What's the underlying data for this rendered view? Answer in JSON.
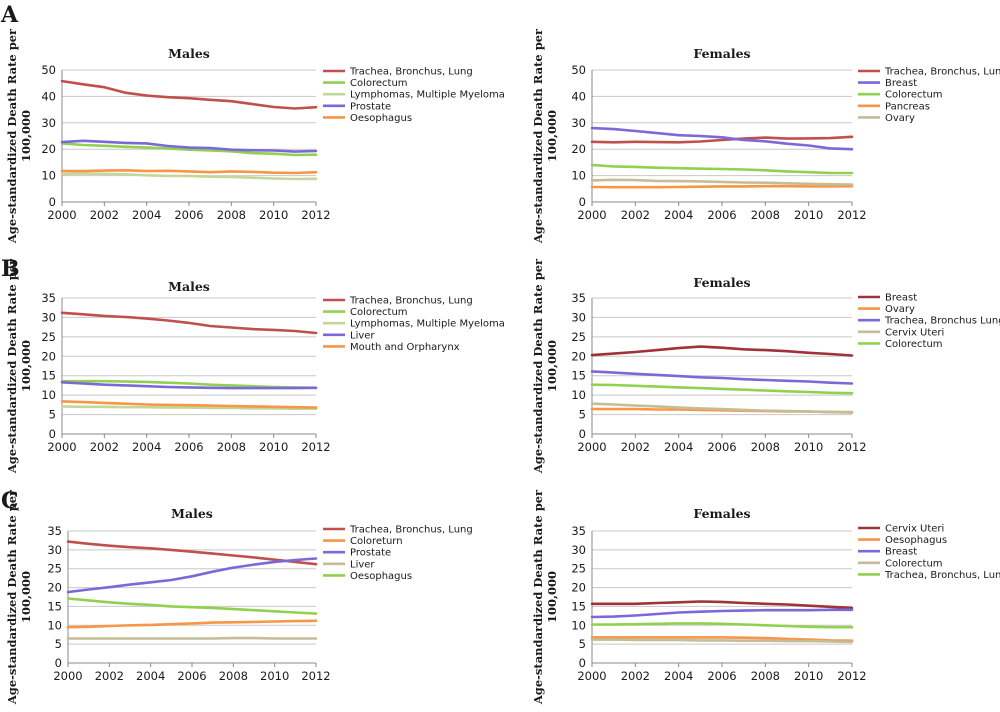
{
  "panel_labels": [
    "A",
    "B",
    "C"
  ],
  "ylabel_lines": [
    "Age-standardized Death Rate per",
    "100,000"
  ],
  "colors": {
    "red": "#c0504d",
    "green": "#92d050",
    "olive": "#c4d79b",
    "purple": "#7b68d9",
    "orange": "#f79646",
    "tan": "#c4bd97",
    "darkred": "#a0323a"
  },
  "chart_data": [
    {
      "type": "line",
      "panel": "A",
      "title": "Males",
      "xlabel": "",
      "ylabel": "Age-standardized Death Rate per 100,000",
      "xlim": [
        2000,
        2012
      ],
      "ylim": [
        0,
        50
      ],
      "yticks": [
        0,
        10,
        20,
        30,
        40,
        50
      ],
      "xticks": [
        2000,
        2002,
        2004,
        2006,
        2008,
        2010,
        2012
      ],
      "x": [
        2000,
        2001,
        2002,
        2003,
        2004,
        2005,
        2006,
        2007,
        2008,
        2009,
        2010,
        2011,
        2012
      ],
      "legend": "right",
      "series": [
        {
          "name": "Trachea, Bronchus, Lung",
          "color": "red",
          "values": [
            45.8,
            44.6,
            43.5,
            41.4,
            40.3,
            39.7,
            39.3,
            38.7,
            38.2,
            37.1,
            36.0,
            35.4,
            35.9
          ]
        },
        {
          "name": "Colorectum",
          "color": "green",
          "values": [
            22.2,
            21.6,
            21.3,
            20.9,
            20.6,
            20.3,
            19.8,
            19.5,
            19.2,
            18.5,
            18.3,
            17.8,
            17.9
          ]
        },
        {
          "name": "Lymphomas, Multiple Myeloma",
          "color": "olive",
          "values": [
            10.6,
            10.8,
            10.7,
            10.5,
            10.1,
            9.9,
            9.9,
            9.6,
            9.5,
            9.2,
            8.9,
            8.7,
            8.8
          ]
        },
        {
          "name": "Prostate",
          "color": "purple",
          "values": [
            22.7,
            23.2,
            22.8,
            22.4,
            22.2,
            21.2,
            20.6,
            20.4,
            19.8,
            19.6,
            19.5,
            19.1,
            19.3
          ]
        },
        {
          "name": "Oesophagus",
          "color": "orange",
          "values": [
            11.7,
            11.7,
            11.9,
            12.0,
            11.7,
            11.8,
            11.6,
            11.3,
            11.6,
            11.4,
            11.1,
            11.0,
            11.3
          ]
        }
      ]
    },
    {
      "type": "line",
      "panel": "A",
      "title": "Females",
      "xlabel": "",
      "ylabel": "Age-standardized Death Rate per 100,000",
      "xlim": [
        2000,
        2012
      ],
      "ylim": [
        0,
        50
      ],
      "yticks": [
        0,
        10,
        20,
        30,
        40,
        50
      ],
      "xticks": [
        2000,
        2002,
        2004,
        2006,
        2008,
        2010,
        2012
      ],
      "x": [
        2000,
        2001,
        2002,
        2003,
        2004,
        2005,
        2006,
        2007,
        2008,
        2009,
        2010,
        2011,
        2012
      ],
      "legend": "right",
      "series": [
        {
          "name": "Trachea, Bronchus, Lung",
          "color": "red",
          "values": [
            22.8,
            22.6,
            22.8,
            22.7,
            22.6,
            22.9,
            23.5,
            24.0,
            24.4,
            24.0,
            24.1,
            24.2,
            24.7
          ]
        },
        {
          "name": "Breast",
          "color": "purple",
          "values": [
            28.0,
            27.6,
            26.9,
            26.1,
            25.3,
            25.0,
            24.5,
            23.5,
            23.0,
            22.1,
            21.4,
            20.3,
            20.0
          ]
        },
        {
          "name": "Colorectum",
          "color": "green",
          "values": [
            14.0,
            13.5,
            13.3,
            13.0,
            12.8,
            12.6,
            12.5,
            12.3,
            12.0,
            11.6,
            11.3,
            11.0,
            11.0
          ]
        },
        {
          "name": "Pancreas",
          "color": "orange",
          "values": [
            5.7,
            5.6,
            5.6,
            5.6,
            5.7,
            5.8,
            5.9,
            5.9,
            6.0,
            6.0,
            5.9,
            5.9,
            6.0
          ]
        },
        {
          "name": "Ovary",
          "color": "tan",
          "values": [
            8.2,
            8.4,
            8.3,
            8.0,
            7.9,
            7.8,
            7.6,
            7.4,
            7.3,
            7.1,
            6.9,
            6.7,
            6.6
          ]
        }
      ]
    },
    {
      "type": "line",
      "panel": "B",
      "title": "Males",
      "xlabel": "",
      "ylabel": "Age-standardized Death Rate per 100,000",
      "xlim": [
        2000,
        2012
      ],
      "ylim": [
        0,
        35
      ],
      "yticks": [
        0,
        5,
        10,
        15,
        20,
        25,
        30,
        35
      ],
      "xticks": [
        2000,
        2002,
        2004,
        2006,
        2008,
        2010,
        2012
      ],
      "x": [
        2000,
        2001,
        2002,
        2003,
        2004,
        2005,
        2006,
        2007,
        2008,
        2009,
        2010,
        2011,
        2012
      ],
      "legend": "right",
      "series": [
        {
          "name": "Trachea, Bronchus, Lung",
          "color": "red",
          "values": [
            31.2,
            30.8,
            30.4,
            30.1,
            29.7,
            29.2,
            28.6,
            27.8,
            27.4,
            27.0,
            26.8,
            26.5,
            26.0
          ]
        },
        {
          "name": "Colorectum",
          "color": "green",
          "values": [
            13.6,
            13.6,
            13.6,
            13.5,
            13.4,
            13.2,
            13.0,
            12.7,
            12.5,
            12.3,
            12.1,
            12.0,
            11.9
          ]
        },
        {
          "name": "Lymphomas, Multiple Myeloma",
          "color": "olive",
          "values": [
            7.1,
            7.0,
            7.0,
            6.9,
            6.9,
            6.8,
            6.8,
            6.7,
            6.7,
            6.6,
            6.6,
            6.5,
            6.5
          ]
        },
        {
          "name": "Liver",
          "color": "purple",
          "values": [
            13.3,
            13.0,
            12.7,
            12.5,
            12.3,
            12.1,
            12.0,
            11.9,
            11.8,
            11.8,
            11.8,
            11.8,
            11.9
          ]
        },
        {
          "name": "Mouth and Orpharynx",
          "color": "orange",
          "values": [
            8.4,
            8.2,
            8.0,
            7.8,
            7.6,
            7.5,
            7.4,
            7.3,
            7.2,
            7.1,
            7.0,
            6.9,
            6.8
          ]
        }
      ]
    },
    {
      "type": "line",
      "panel": "B",
      "title": "Females",
      "xlabel": "",
      "ylabel": "Age-standardized Death Rate per 100,000",
      "xlim": [
        2000,
        2012
      ],
      "ylim": [
        0,
        35
      ],
      "yticks": [
        0,
        5,
        10,
        15,
        20,
        25,
        30,
        35
      ],
      "xticks": [
        2000,
        2002,
        2004,
        2006,
        2008,
        2010,
        2012
      ],
      "x": [
        2000,
        2001,
        2002,
        2003,
        2004,
        2005,
        2006,
        2007,
        2008,
        2009,
        2010,
        2011,
        2012
      ],
      "legend": "right",
      "series": [
        {
          "name": "Breast",
          "color": "darkred",
          "values": [
            20.3,
            20.7,
            21.1,
            21.6,
            22.1,
            22.5,
            22.2,
            21.8,
            21.6,
            21.3,
            20.9,
            20.6,
            20.2
          ]
        },
        {
          "name": "Ovary",
          "color": "orange",
          "values": [
            6.4,
            6.4,
            6.4,
            6.3,
            6.3,
            6.2,
            6.1,
            6.0,
            5.9,
            5.8,
            5.8,
            5.7,
            5.6
          ]
        },
        {
          "name": "Trachea, Bronchus Lung",
          "color": "purple",
          "values": [
            16.1,
            15.8,
            15.5,
            15.2,
            14.9,
            14.6,
            14.4,
            14.1,
            13.9,
            13.7,
            13.5,
            13.2,
            13.0
          ]
        },
        {
          "name": "Cervix Uteri",
          "color": "tan",
          "values": [
            7.8,
            7.6,
            7.3,
            7.1,
            6.8,
            6.6,
            6.4,
            6.2,
            6.0,
            5.9,
            5.8,
            5.6,
            5.5
          ]
        },
        {
          "name": "Colorectum",
          "color": "green",
          "values": [
            12.7,
            12.6,
            12.4,
            12.2,
            12.0,
            11.8,
            11.6,
            11.4,
            11.2,
            11.0,
            10.8,
            10.6,
            10.5
          ]
        }
      ]
    },
    {
      "type": "line",
      "panel": "C",
      "title": "Males",
      "xlabel": "",
      "ylabel": "Age-standardized Death Rate per 100,000",
      "xlim": [
        2000,
        2012
      ],
      "ylim": [
        0,
        35
      ],
      "yticks": [
        0,
        5,
        10,
        15,
        20,
        25,
        30,
        35
      ],
      "xticks": [
        2000,
        2002,
        2004,
        2006,
        2008,
        2010,
        2012
      ],
      "x": [
        2000,
        2001,
        2002,
        2003,
        2004,
        2005,
        2006,
        2007,
        2008,
        2009,
        2010,
        2011,
        2012
      ],
      "legend": "right",
      "series": [
        {
          "name": "Trachea, Bronchus, Lung",
          "color": "red",
          "values": [
            32.2,
            31.6,
            31.1,
            30.7,
            30.4,
            30.0,
            29.5,
            29.0,
            28.5,
            28.0,
            27.4,
            26.8,
            26.2
          ]
        },
        {
          "name": "Coloreturn",
          "color": "orange",
          "values": [
            9.5,
            9.6,
            9.8,
            10.0,
            10.1,
            10.3,
            10.5,
            10.7,
            10.8,
            10.9,
            11.0,
            11.1,
            11.2
          ]
        },
        {
          "name": "Prostate",
          "color": "purple",
          "values": [
            18.8,
            19.5,
            20.1,
            20.8,
            21.4,
            22.0,
            23.0,
            24.2,
            25.3,
            26.1,
            26.8,
            27.3,
            27.7
          ]
        },
        {
          "name": "Liver",
          "color": "tan",
          "values": [
            6.5,
            6.5,
            6.5,
            6.5,
            6.5,
            6.5,
            6.5,
            6.5,
            6.6,
            6.6,
            6.5,
            6.5,
            6.5
          ]
        },
        {
          "name": "Oesophagus",
          "color": "green",
          "values": [
            17.1,
            16.6,
            16.1,
            15.7,
            15.4,
            15.0,
            14.8,
            14.6,
            14.3,
            14.0,
            13.7,
            13.4,
            13.1
          ]
        }
      ]
    },
    {
      "type": "line",
      "panel": "C",
      "title": "Females",
      "xlabel": "",
      "ylabel": "Age-standardized Death Rate per 100,000",
      "xlim": [
        2000,
        2012
      ],
      "ylim": [
        0,
        35
      ],
      "yticks": [
        0,
        5,
        10,
        15,
        20,
        25,
        30,
        35
      ],
      "xticks": [
        2000,
        2002,
        2004,
        2006,
        2008,
        2010,
        2012
      ],
      "x": [
        2000,
        2001,
        2002,
        2003,
        2004,
        2005,
        2006,
        2007,
        2008,
        2009,
        2010,
        2011,
        2012
      ],
      "legend": "right",
      "series": [
        {
          "name": "Cervix Uteri",
          "color": "darkred",
          "values": [
            15.7,
            15.7,
            15.7,
            15.9,
            16.1,
            16.3,
            16.2,
            15.9,
            15.7,
            15.5,
            15.2,
            14.9,
            14.6
          ]
        },
        {
          "name": "Oesophagus",
          "color": "orange",
          "values": [
            6.8,
            6.8,
            6.8,
            6.8,
            6.8,
            6.8,
            6.8,
            6.7,
            6.6,
            6.4,
            6.2,
            6.0,
            5.9
          ]
        },
        {
          "name": "Breast",
          "color": "purple",
          "values": [
            12.2,
            12.3,
            12.6,
            13.0,
            13.4,
            13.6,
            13.8,
            13.9,
            14.0,
            14.0,
            14.0,
            14.1,
            14.1
          ]
        },
        {
          "name": "Colorectum",
          "color": "tan",
          "values": [
            6.2,
            6.2,
            6.1,
            6.1,
            6.1,
            6.0,
            6.0,
            5.9,
            5.9,
            5.8,
            5.8,
            5.7,
            5.6
          ]
        },
        {
          "name": "Trachea, Bronchus, Lung",
          "color": "green",
          "values": [
            10.2,
            10.2,
            10.3,
            10.4,
            10.5,
            10.5,
            10.4,
            10.2,
            10.0,
            9.8,
            9.6,
            9.5,
            9.5
          ]
        }
      ]
    }
  ]
}
